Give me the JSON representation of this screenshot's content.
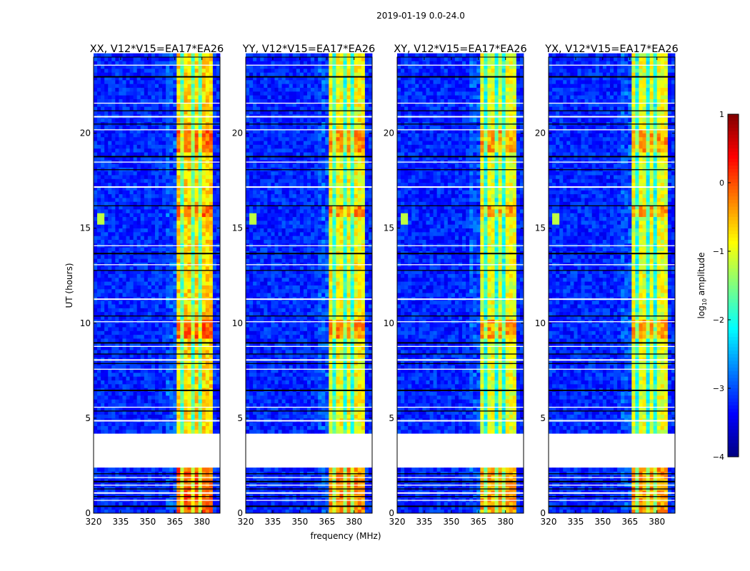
{
  "chart_data": {
    "type": "heatmap",
    "title": "2019-01-19 0.0-24.0",
    "xlabel": "frequency (MHz)",
    "ylabel": "UT (hours)",
    "xlim": [
      320,
      390
    ],
    "ylim": [
      0,
      24
    ],
    "xticks": [
      "320",
      "335",
      "350",
      "365",
      "380"
    ],
    "xtick_values": [
      320,
      335,
      350,
      365,
      380
    ],
    "yticks": [
      "0",
      "5",
      "10",
      "15",
      "20"
    ],
    "ytick_values": [
      0,
      5,
      10,
      15,
      20
    ],
    "panels": [
      {
        "title": "XX, V12*V15=EA17*EA26",
        "band_level": -0.7,
        "rfi_spike": true
      },
      {
        "title": "YY, V12*V15=EA17*EA26",
        "band_level": -0.9,
        "rfi_spike": true
      },
      {
        "title": "XY, V12*V15=EA17*EA26",
        "band_level": -1.0,
        "rfi_spike": true
      },
      {
        "title": "YX, V12*V15=EA17*EA26",
        "band_level": -1.0,
        "rfi_spike": true
      }
    ],
    "background_level": -3.2,
    "signal_band_mhz": [
      364.5,
      385
    ],
    "band_dividers_mhz": [
      369,
      374.5,
      379.5
    ],
    "flagged_interval_hours": [
      2.4,
      4.1
    ],
    "bright_intervals_hours": [
      [
        18.9,
        20.1
      ],
      [
        9.1,
        10.1
      ],
      [
        15.4,
        16.0
      ],
      [
        0.0,
        2.3
      ]
    ],
    "flag_lines_hours": [
      0.4,
      0.7,
      0.9,
      1.1,
      1.3,
      1.5,
      1.7,
      1.9,
      2.1,
      4.9,
      5.4,
      5.6,
      6.5,
      7.6,
      7.9,
      8.1,
      8.4,
      8.8,
      9.0,
      10.1,
      10.4,
      11.3,
      12.8,
      13.1,
      13.7,
      14.1,
      16.2,
      17.2,
      18.1,
      18.5,
      18.8,
      20.2,
      20.5,
      20.9,
      21.2,
      21.6,
      23.0,
      23.6
    ],
    "colorbar": {
      "label_main": "log",
      "label_sub": "10",
      "label_rest": " amplitude",
      "range": [
        -4,
        1
      ],
      "ticks": [
        "1",
        "0",
        "−1",
        "−2",
        "−3",
        "−4"
      ],
      "tick_values": [
        1,
        0,
        -1,
        -2,
        -3,
        -4
      ],
      "colormap": "jet"
    }
  }
}
